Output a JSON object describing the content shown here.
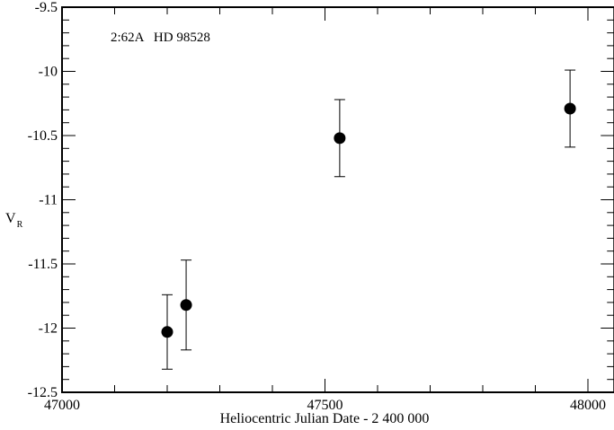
{
  "chart_data": {
    "type": "scatter",
    "title": "",
    "annotation": "2:62A   HD 98528",
    "xlabel": "Heliocentric Julian Date - 2 400 000",
    "ylabel": "V",
    "ylabel_sub": "R",
    "xlim": [
      47000,
      48050
    ],
    "ylim": [
      -12.5,
      -9.5
    ],
    "x_ticks": [
      47000,
      47500,
      48000
    ],
    "x_tick_labels": [
      "47000",
      "47500",
      "48000"
    ],
    "x_minor_step": 100,
    "y_ticks": [
      -9.5,
      -10,
      -10.5,
      -11,
      -11.5,
      -12,
      -12.5
    ],
    "y_tick_labels": [
      "-9.5",
      "-10",
      "-10.5",
      "-11",
      "-11.5",
      "-12",
      "-12.5"
    ],
    "y_minor_step": 0.1,
    "grid": false,
    "legend": "none",
    "marker_color": "#000000",
    "points": [
      {
        "x": 47200,
        "y": -12.03,
        "err": 0.29
      },
      {
        "x": 47236,
        "y": -11.82,
        "err": 0.35
      },
      {
        "x": 47528,
        "y": -10.52,
        "err": 0.3
      },
      {
        "x": 47966,
        "y": -10.29,
        "err": 0.3
      }
    ]
  }
}
